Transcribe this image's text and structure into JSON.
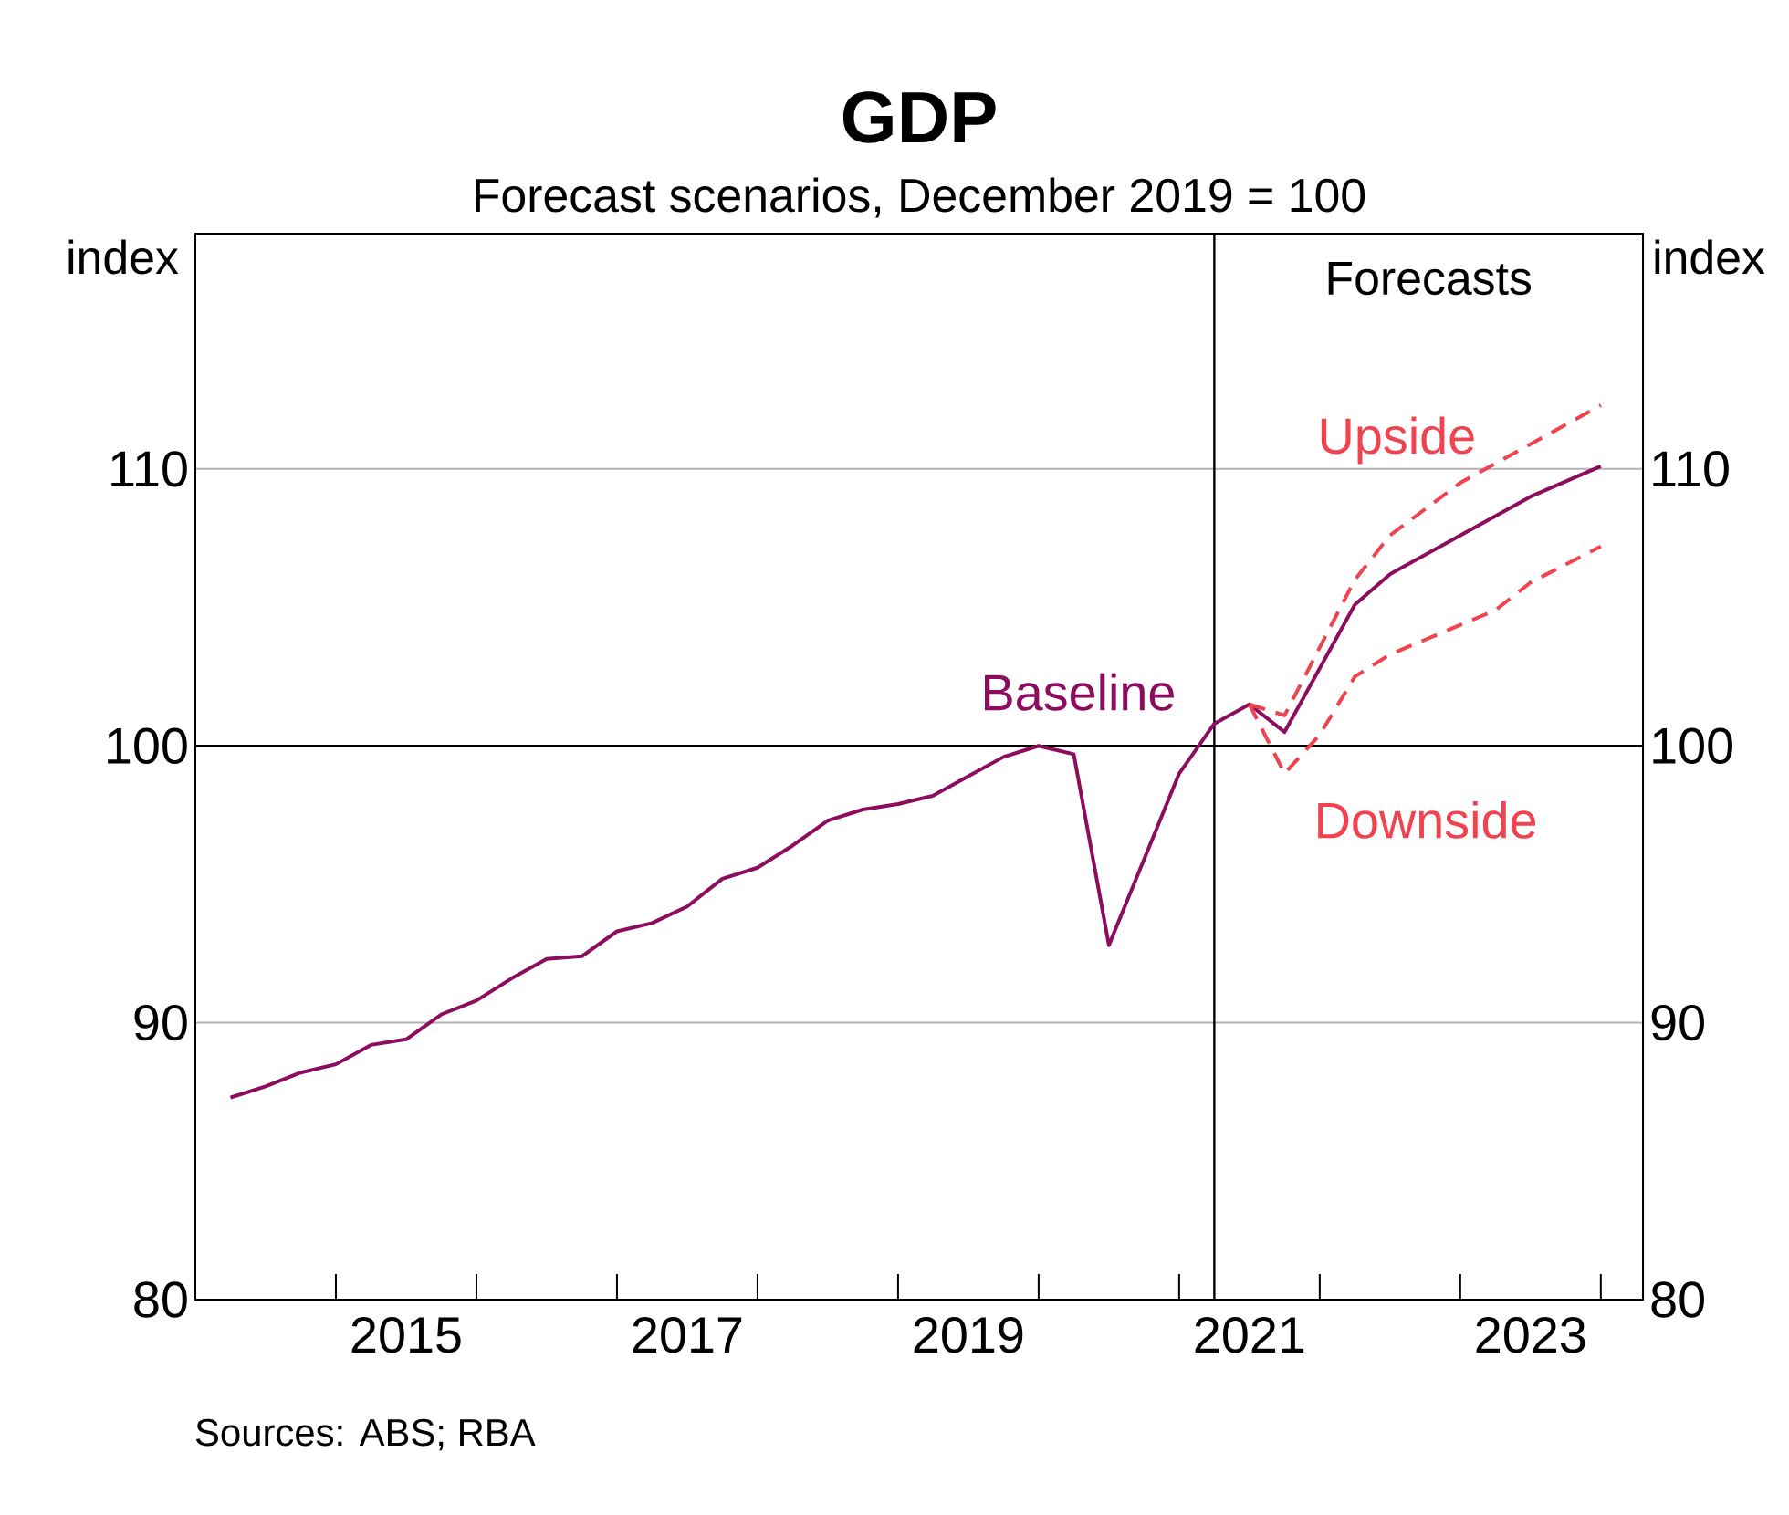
{
  "chart_data": {
    "type": "line",
    "title": "GDP",
    "subtitle": "Forecast scenarios, December 2019 = 100",
    "ylabel": "index",
    "y2label": "index",
    "xlim": [
      2014,
      2024.3
    ],
    "ylim": [
      80,
      118.5
    ],
    "y2lim": [
      80,
      118.5
    ],
    "yticks": [
      80,
      90,
      100,
      110
    ],
    "y2ticks": [
      80,
      90,
      100,
      110
    ],
    "xticks": [
      {
        "value": 2015,
        "label": null
      },
      {
        "value": 2016,
        "label": null
      },
      {
        "value": 2017,
        "label": null
      },
      {
        "value": 2018,
        "label": null
      },
      {
        "value": 2019,
        "label": null
      },
      {
        "value": 2020,
        "label": null
      },
      {
        "value": 2021,
        "label": null
      },
      {
        "value": 2022,
        "label": null
      },
      {
        "value": 2023,
        "label": null
      },
      {
        "value": 2024,
        "label": null
      },
      {
        "value": 2015.5,
        "label": "2015"
      },
      {
        "value": 2017.5,
        "label": "2017"
      },
      {
        "value": 2019.5,
        "label": "2019"
      },
      {
        "value": 2021.5,
        "label": "2021"
      },
      {
        "value": 2023.5,
        "label": "2023"
      }
    ],
    "grid": "y",
    "legend": false,
    "series": [
      {
        "name": "Baseline",
        "color": "#8c0d5d",
        "line_style": "solid",
        "x": [
          2014.25,
          2014.5,
          2014.75,
          2015,
          2015.25,
          2015.5,
          2015.75,
          2016,
          2016.25,
          2016.5,
          2016.75,
          2017,
          2017.25,
          2017.5,
          2017.75,
          2018,
          2018.25,
          2018.5,
          2018.75,
          2019,
          2019.25,
          2019.5,
          2019.75,
          2020,
          2020.25,
          2020.5,
          2020.75,
          2021,
          2021.25,
          2021.5,
          2021.75,
          2022.25,
          2022.5,
          2023.5,
          2024
        ],
        "values": [
          87.3,
          87.7,
          88.2,
          88.5,
          89.2,
          89.4,
          90.3,
          90.8,
          91.6,
          92.3,
          92.4,
          93.3,
          93.6,
          94.2,
          95.2,
          95.6,
          96.4,
          97.3,
          97.7,
          97.9,
          98.2,
          98.9,
          99.6,
          100.0,
          99.7,
          92.8,
          95.9,
          99.0,
          100.8,
          101.5,
          100.5,
          105.1,
          106.2,
          109.0,
          110.1
        ]
      },
      {
        "name": "Upside",
        "color": "#f0434f",
        "line_style": "dashed",
        "x": [
          2021.5,
          2021.75,
          2022.25,
          2022.5,
          2023,
          2024
        ],
        "values": [
          101.5,
          101.1,
          106.0,
          107.6,
          109.5,
          112.3
        ]
      },
      {
        "name": "Downside",
        "color": "#f0434f",
        "line_style": "dashed",
        "x": [
          2021.5,
          2021.75,
          2022,
          2022.25,
          2022.5,
          2023.25,
          2023.5,
          2024
        ],
        "values": [
          101.5,
          99.0,
          100.4,
          102.5,
          103.3,
          104.9,
          105.9,
          107.2
        ]
      }
    ],
    "ref_lines": [
      {
        "axis": "x",
        "value": 2021.25,
        "label": "Forecasts",
        "color": "#000000"
      },
      {
        "axis": "y",
        "value": 100,
        "color": "#000000"
      }
    ],
    "annotations": [
      "Sources: ABS; RBA"
    ]
  }
}
